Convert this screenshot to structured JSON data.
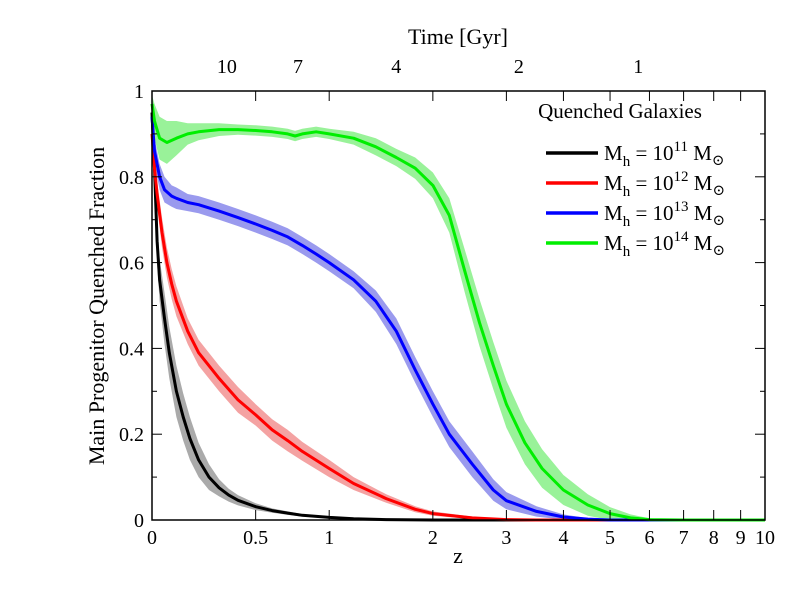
{
  "chart_data": {
    "type": "line",
    "title": "",
    "xlabel": "z",
    "ylabel": "Main Progenitor Quenched Fraction",
    "top_xlabel": "Time [Gyr]",
    "x_scale": "log(1+z)",
    "xlim": [
      0,
      10
    ],
    "ylim": [
      0,
      1
    ],
    "x_ticks": [
      {
        "value": 0,
        "label": "0"
      },
      {
        "value": 0.5,
        "label": "0.5"
      },
      {
        "value": 1,
        "label": "1"
      },
      {
        "value": 2,
        "label": "2"
      },
      {
        "value": 3,
        "label": "3"
      },
      {
        "value": 4,
        "label": "4"
      },
      {
        "value": 5,
        "label": "5"
      },
      {
        "value": 6,
        "label": "6"
      },
      {
        "value": 7,
        "label": "7"
      },
      {
        "value": 8,
        "label": "8"
      },
      {
        "value": 9,
        "label": "9"
      },
      {
        "value": 10,
        "label": "10"
      }
    ],
    "y_ticks": [
      {
        "value": 0,
        "label": "0"
      },
      {
        "value": 0.2,
        "label": "0.2"
      },
      {
        "value": 0.4,
        "label": "0.4"
      },
      {
        "value": 0.6,
        "label": "0.6"
      },
      {
        "value": 0.8,
        "label": "0.8"
      },
      {
        "value": 1,
        "label": "1"
      }
    ],
    "top_ticks": [
      {
        "label": "10",
        "z": 0.34
      },
      {
        "label": "7",
        "z": 0.77
      },
      {
        "label": "4",
        "z": 1.6
      },
      {
        "label": "2",
        "z": 3.2
      },
      {
        "label": "1",
        "z": 5.7
      }
    ],
    "legend": {
      "title": "Quenched Galaxies",
      "placement": "top-right"
    },
    "series": [
      {
        "label": {
          "pre": "M",
          "sub": "h",
          "mid": " = 10",
          "sup": "11",
          "post": " M",
          "sub2": "⊙"
        },
        "color": "#000000",
        "band_color": "#aaaaaa",
        "points": [
          [
            0,
            0.95
          ],
          [
            0.01,
            0.82
          ],
          [
            0.02,
            0.65
          ],
          [
            0.03,
            0.56
          ],
          [
            0.05,
            0.47
          ],
          [
            0.07,
            0.39
          ],
          [
            0.1,
            0.3
          ],
          [
            0.13,
            0.24
          ],
          [
            0.16,
            0.19
          ],
          [
            0.2,
            0.14
          ],
          [
            0.25,
            0.1
          ],
          [
            0.3,
            0.075
          ],
          [
            0.35,
            0.058
          ],
          [
            0.4,
            0.046
          ],
          [
            0.5,
            0.031
          ],
          [
            0.6,
            0.022
          ],
          [
            0.7,
            0.016
          ],
          [
            0.8,
            0.011
          ],
          [
            1.0,
            0.006
          ],
          [
            1.2,
            0.003
          ],
          [
            1.5,
            0.001
          ],
          [
            2,
            0
          ],
          [
            10,
            0
          ]
        ],
        "band": [
          0.01,
          0.005,
          0.05,
          0.05,
          0.06,
          0.06,
          0.06,
          0.055,
          0.05,
          0.04,
          0.03,
          0.02,
          0.015,
          0.012,
          0.008,
          0.005,
          0.004,
          0.003,
          0.002,
          0.001,
          0.001,
          0,
          0
        ]
      },
      {
        "label": {
          "pre": "M",
          "sub": "h",
          "mid": " = 10",
          "sup": "12",
          "post": " M",
          "sub2": "⊙"
        },
        "color": "#ff0000",
        "band_color": "#f4a2a2",
        "points": [
          [
            0,
            0.9
          ],
          [
            0.01,
            0.82
          ],
          [
            0.02,
            0.76
          ],
          [
            0.04,
            0.67
          ],
          [
            0.06,
            0.6
          ],
          [
            0.08,
            0.55
          ],
          [
            0.1,
            0.51
          ],
          [
            0.15,
            0.44
          ],
          [
            0.2,
            0.39
          ],
          [
            0.3,
            0.33
          ],
          [
            0.4,
            0.28
          ],
          [
            0.5,
            0.245
          ],
          [
            0.6,
            0.21
          ],
          [
            0.7,
            0.185
          ],
          [
            0.8,
            0.16
          ],
          [
            1.0,
            0.12
          ],
          [
            1.2,
            0.085
          ],
          [
            1.5,
            0.05
          ],
          [
            1.8,
            0.025
          ],
          [
            2,
            0.015
          ],
          [
            2.5,
            0.005
          ],
          [
            3,
            0.001
          ],
          [
            3.5,
            0
          ],
          [
            10,
            0
          ]
        ],
        "band": [
          0.02,
          0.03,
          0.03,
          0.035,
          0.035,
          0.035,
          0.035,
          0.03,
          0.03,
          0.03,
          0.03,
          0.025,
          0.025,
          0.025,
          0.022,
          0.02,
          0.015,
          0.01,
          0.007,
          0.005,
          0.003,
          0.001,
          0,
          0
        ]
      },
      {
        "label": {
          "pre": "M",
          "sub": "h",
          "mid": " = 10",
          "sup": "13",
          "post": " M",
          "sub2": "⊙"
        },
        "color": "#0000ff",
        "band_color": "#9a9aee",
        "points": [
          [
            0,
            0.94
          ],
          [
            0.01,
            0.86
          ],
          [
            0.03,
            0.8
          ],
          [
            0.05,
            0.77
          ],
          [
            0.08,
            0.755
          ],
          [
            0.1,
            0.75
          ],
          [
            0.15,
            0.74
          ],
          [
            0.2,
            0.735
          ],
          [
            0.3,
            0.72
          ],
          [
            0.4,
            0.705
          ],
          [
            0.5,
            0.69
          ],
          [
            0.6,
            0.675
          ],
          [
            0.7,
            0.66
          ],
          [
            0.8,
            0.64
          ],
          [
            0.9,
            0.62
          ],
          [
            1.0,
            0.6
          ],
          [
            1.2,
            0.56
          ],
          [
            1.4,
            0.51
          ],
          [
            1.6,
            0.44
          ],
          [
            1.8,
            0.35
          ],
          [
            2.0,
            0.27
          ],
          [
            2.2,
            0.2
          ],
          [
            2.5,
            0.13
          ],
          [
            2.8,
            0.07
          ],
          [
            3.0,
            0.045
          ],
          [
            3.5,
            0.02
          ],
          [
            4,
            0.007
          ],
          [
            4.5,
            0.002
          ],
          [
            5,
            0
          ],
          [
            10,
            0
          ]
        ],
        "band": [
          0.02,
          0.03,
          0.03,
          0.03,
          0.025,
          0.025,
          0.02,
          0.02,
          0.02,
          0.02,
          0.02,
          0.02,
          0.02,
          0.02,
          0.02,
          0.02,
          0.02,
          0.025,
          0.03,
          0.03,
          0.03,
          0.03,
          0.03,
          0.025,
          0.02,
          0.012,
          0.006,
          0.002,
          0,
          0
        ]
      },
      {
        "label": {
          "pre": "M",
          "sub": "h",
          "mid": " = 10",
          "sup": "14",
          "post": " M",
          "sub2": "⊙"
        },
        "color": "#00ee00",
        "band_color": "#99f299",
        "points": [
          [
            0,
            0.97
          ],
          [
            0.01,
            0.93
          ],
          [
            0.03,
            0.89
          ],
          [
            0.06,
            0.88
          ],
          [
            0.1,
            0.89
          ],
          [
            0.15,
            0.9
          ],
          [
            0.2,
            0.905
          ],
          [
            0.3,
            0.91
          ],
          [
            0.4,
            0.91
          ],
          [
            0.5,
            0.908
          ],
          [
            0.6,
            0.905
          ],
          [
            0.7,
            0.9
          ],
          [
            0.75,
            0.895
          ],
          [
            0.8,
            0.9
          ],
          [
            0.9,
            0.905
          ],
          [
            1.0,
            0.9
          ],
          [
            1.2,
            0.89
          ],
          [
            1.4,
            0.87
          ],
          [
            1.6,
            0.845
          ],
          [
            1.8,
            0.82
          ],
          [
            2.0,
            0.78
          ],
          [
            2.2,
            0.71
          ],
          [
            2.4,
            0.58
          ],
          [
            2.6,
            0.46
          ],
          [
            2.8,
            0.36
          ],
          [
            3.0,
            0.27
          ],
          [
            3.3,
            0.18
          ],
          [
            3.6,
            0.12
          ],
          [
            4.0,
            0.07
          ],
          [
            4.5,
            0.035
          ],
          [
            5.0,
            0.015
          ],
          [
            5.5,
            0.005
          ],
          [
            6,
            0.001
          ],
          [
            7,
            0
          ],
          [
            10,
            0
          ]
        ],
        "band": [
          0.02,
          0.04,
          0.05,
          0.05,
          0.04,
          0.025,
          0.02,
          0.015,
          0.012,
          0.012,
          0.012,
          0.012,
          0.012,
          0.012,
          0.012,
          0.012,
          0.015,
          0.02,
          0.02,
          0.025,
          0.03,
          0.04,
          0.05,
          0.055,
          0.055,
          0.055,
          0.05,
          0.045,
          0.035,
          0.025,
          0.015,
          0.008,
          0.003,
          0,
          0
        ]
      }
    ]
  }
}
